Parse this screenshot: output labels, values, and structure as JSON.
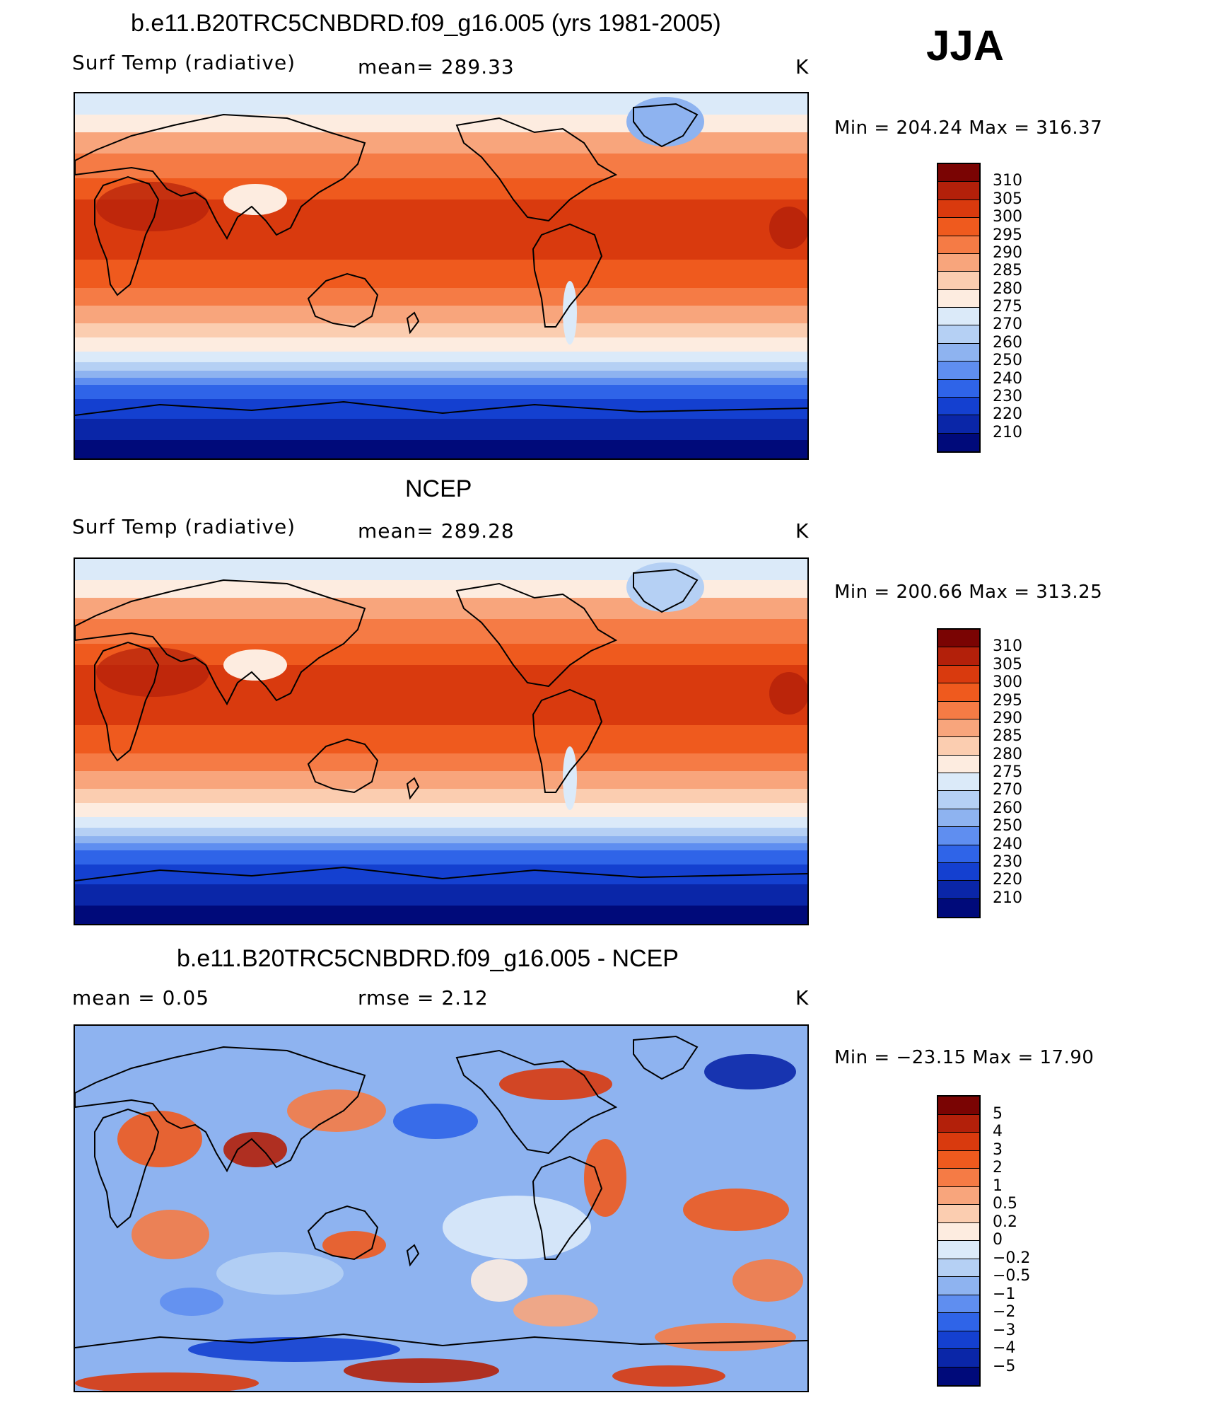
{
  "season": "JJA",
  "panels": [
    {
      "title": "b.e11.B20TRC5CNBDRD.f09_g16.005 (yrs 1981-2005)",
      "variable": "Surf Temp (radiative)",
      "stat": "mean=  289.33",
      "unit": "K",
      "minmax": "Min  =  204.24  Max  =  316.37",
      "colorbar": {
        "labels": [
          "310",
          "305",
          "300",
          "295",
          "290",
          "285",
          "280",
          "275",
          "270",
          "260",
          "250",
          "240",
          "230",
          "220",
          "210"
        ],
        "colors": [
          "#7a0403",
          "#b3200a",
          "#d93a0e",
          "#ef5a1e",
          "#f57b45",
          "#f8a57c",
          "#fbcdb0",
          "#fdece0",
          "#dbeaf9",
          "#b5d0f4",
          "#8eb3f0",
          "#5f8ef0",
          "#2f64e8",
          "#1440d0",
          "#0a26a8",
          "#000a7a"
        ]
      },
      "map_style": "model"
    },
    {
      "title": "NCEP",
      "variable": "Surf Temp (radiative)",
      "stat": "mean=  289.28",
      "unit": "K",
      "minmax": "Min  =  200.66  Max  =  313.25",
      "colorbar": {
        "labels": [
          "310",
          "305",
          "300",
          "295",
          "290",
          "285",
          "280",
          "275",
          "270",
          "260",
          "250",
          "240",
          "230",
          "220",
          "210"
        ],
        "colors": [
          "#7a0403",
          "#b3200a",
          "#d93a0e",
          "#ef5a1e",
          "#f57b45",
          "#f8a57c",
          "#fbcdb0",
          "#fdece0",
          "#dbeaf9",
          "#b5d0f4",
          "#8eb3f0",
          "#5f8ef0",
          "#2f64e8",
          "#1440d0",
          "#0a26a8",
          "#000a7a"
        ]
      },
      "map_style": "obs"
    },
    {
      "title": "b.e11.B20TRC5CNBDRD.f09_g16.005 - NCEP",
      "variable": "mean =     0.05",
      "stat": "rmse =     2.12",
      "unit": "K",
      "minmax": "Min  =  −23.15  Max  =    17.90",
      "colorbar": {
        "labels": [
          "5",
          "4",
          "3",
          "2",
          "1",
          "0.5",
          "0.2",
          "0",
          "−0.2",
          "−0.5",
          "−1",
          "−2",
          "−3",
          "−4",
          "−5"
        ],
        "colors": [
          "#7a0403",
          "#b3200a",
          "#d93a0e",
          "#ef5a1e",
          "#f57b45",
          "#f8a57c",
          "#fbcdb0",
          "#fdece0",
          "#dbeaf9",
          "#b5d0f4",
          "#8eb3f0",
          "#5f8ef0",
          "#2f64e8",
          "#1440d0",
          "#0a26a8",
          "#000a7a"
        ]
      },
      "map_style": "diff"
    }
  ]
}
